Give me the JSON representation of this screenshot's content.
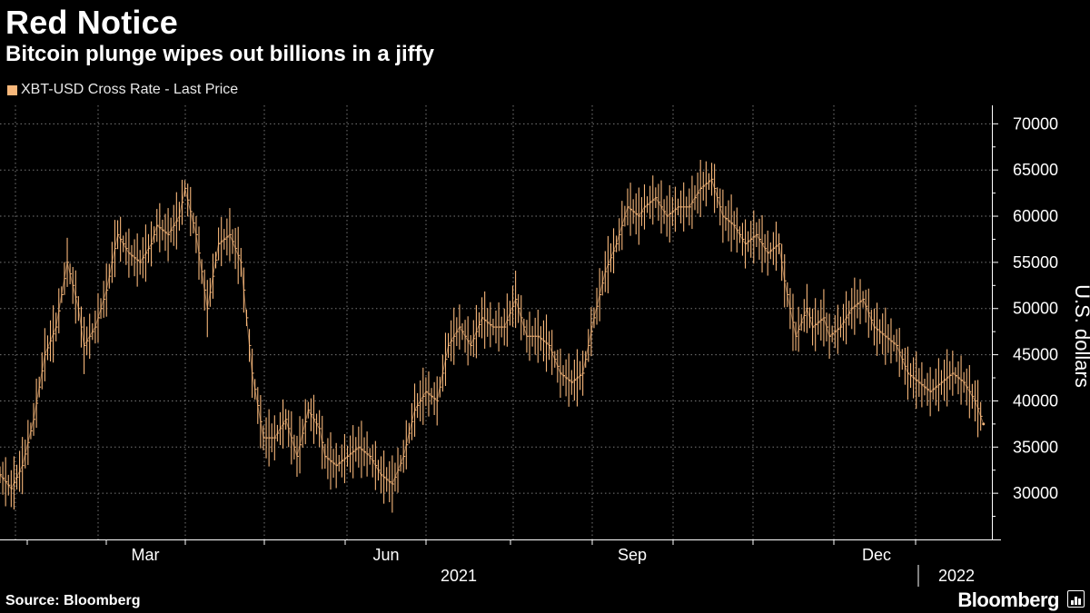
{
  "header": {
    "title": "Red Notice",
    "subtitle": "Bitcoin plunge wipes out billions in a jiffy"
  },
  "legend": {
    "label": "XBT-USD Cross Rate - Last Price",
    "color": "#f7b77a"
  },
  "footer": {
    "source": "Source: Bloomberg",
    "brand": "Bloomberg"
  },
  "chart_data": {
    "type": "line",
    "title": "Red Notice",
    "subtitle": "Bitcoin plunge wipes out billions in a jiffy",
    "ylabel": "U.S. dollars",
    "xlabel": "",
    "ylim": [
      25000,
      72000
    ],
    "yticks": [
      30000,
      35000,
      40000,
      45000,
      50000,
      55000,
      60000,
      65000,
      70000
    ],
    "xtick_labels": [
      "Mar",
      "Jun",
      "Sep",
      "Dec"
    ],
    "year_labels": [
      "2021",
      "2022"
    ],
    "x_unit": "days since 2021-01-21",
    "grid": true,
    "series": [
      {
        "name": "XBT-USD Cross Rate - Last Price",
        "color": "#f7b77a",
        "x": [
          0,
          4,
          8,
          12,
          16,
          20,
          24,
          28,
          30,
          34,
          38,
          42,
          46,
          50,
          54,
          56,
          60,
          64,
          66,
          70,
          74,
          78,
          82,
          86,
          90,
          94,
          98,
          102,
          106,
          110,
          114,
          116,
          120,
          124,
          128,
          132,
          136,
          140,
          144,
          148,
          152,
          156,
          160,
          164,
          168,
          172,
          176,
          180,
          184,
          188,
          192,
          196,
          200,
          204,
          208,
          212,
          216,
          220,
          224,
          228,
          230,
          234,
          238,
          242,
          246,
          250,
          254,
          258,
          262,
          266,
          270,
          274,
          278,
          280,
          284,
          288,
          290,
          294,
          296,
          300,
          304,
          308,
          312,
          316,
          320,
          324,
          328,
          332,
          336,
          340,
          344,
          348,
          351
        ],
        "values": [
          32000,
          30500,
          33000,
          38000,
          45000,
          48000,
          55000,
          50000,
          46000,
          48000,
          52000,
          58000,
          56000,
          55000,
          57000,
          59000,
          58000,
          60000,
          63000,
          58000,
          50000,
          57000,
          58000,
          55000,
          43000,
          36000,
          36000,
          38000,
          34000,
          39000,
          37000,
          34000,
          33000,
          34000,
          35000,
          34000,
          32000,
          31000,
          34000,
          39000,
          41000,
          40000,
          46000,
          48000,
          46000,
          49000,
          48000,
          48000,
          51000,
          47000,
          47000,
          46000,
          43000,
          42000,
          43000,
          49000,
          54000,
          57000,
          61000,
          60000,
          61000,
          62000,
          60000,
          61000,
          61000,
          63000,
          64000,
          60000,
          59000,
          57000,
          58000,
          56000,
          57000,
          53000,
          47000,
          50000,
          48000,
          49000,
          47000,
          48000,
          50000,
          51000,
          48000,
          47000,
          46000,
          43000,
          42000,
          41000,
          42000,
          43000,
          42000,
          40000,
          37500
        ]
      }
    ]
  }
}
